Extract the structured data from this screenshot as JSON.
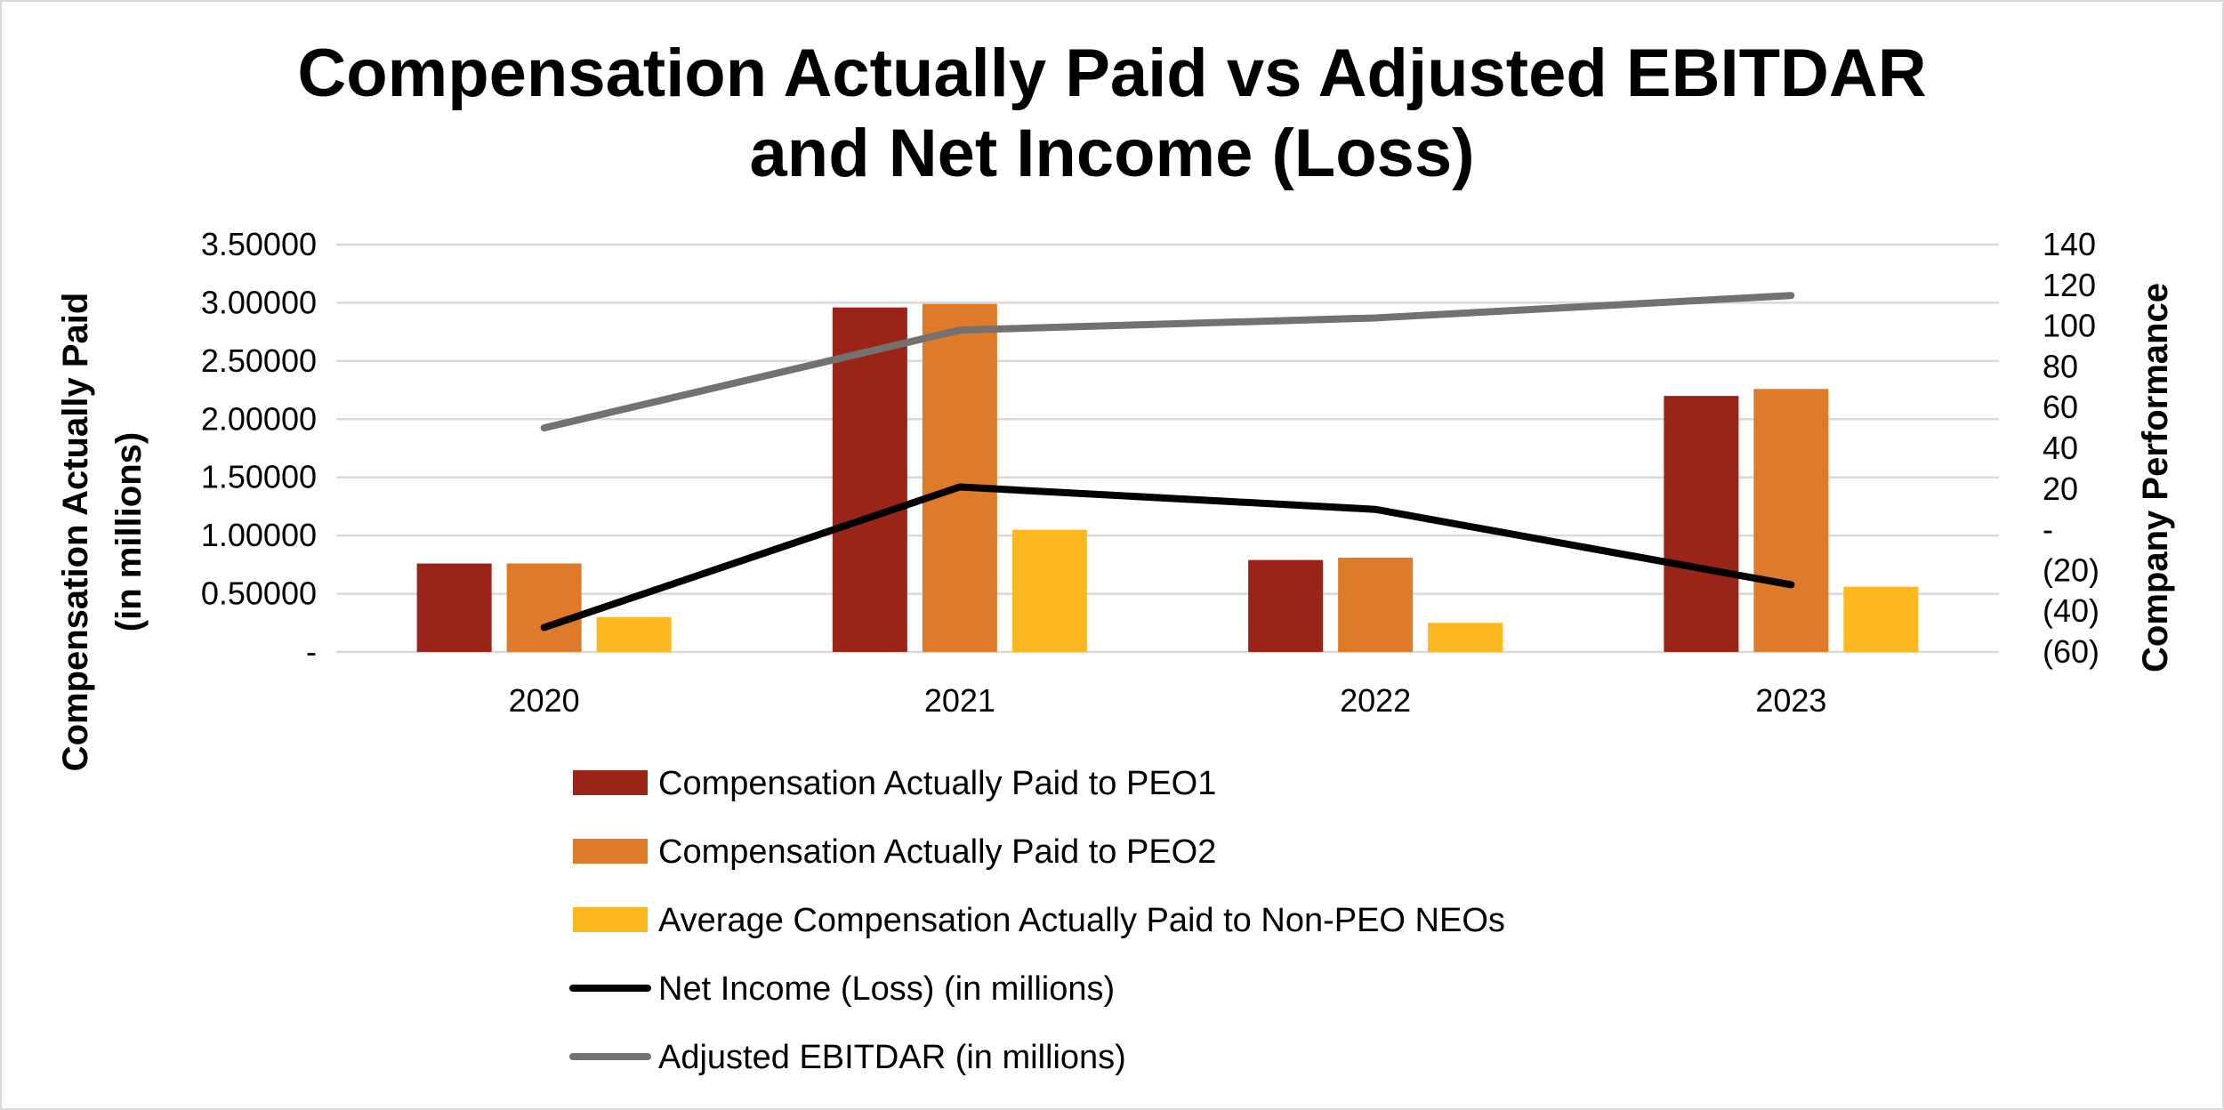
{
  "chart_data": {
    "type": "bar",
    "title_lines": [
      "Compensation Actually Paid vs Adjusted EBITDAR",
      "and Net Income (Loss)"
    ],
    "categories": [
      "2020",
      "2021",
      "2022",
      "2023"
    ],
    "y_left": {
      "label_lines": [
        "Compensation Actually Paid",
        "(in millions)"
      ],
      "ylim": [
        0,
        3.5
      ],
      "ticks": [
        0,
        0.5,
        1.0,
        1.5,
        2.0,
        2.5,
        3.0,
        3.5
      ],
      "tick_labels": [
        "-",
        "0.50000",
        "1.00000",
        "1.50000",
        "2.00000",
        "2.50000",
        "3.00000",
        "3.50000"
      ]
    },
    "y_right": {
      "label": "Company Performance",
      "ylim": [
        -60,
        140
      ],
      "ticks": [
        -60,
        -40,
        -20,
        0,
        20,
        40,
        60,
        80,
        100,
        120,
        140
      ],
      "tick_labels": [
        "(60)",
        "(40)",
        "(20)",
        "-",
        "20",
        "40",
        "60",
        "80",
        "100",
        "120",
        "140"
      ]
    },
    "grid": true,
    "series": [
      {
        "name": "Compensation Actually Paid to PEO1",
        "kind": "bar",
        "axis": "left",
        "color": "#9B2418",
        "values": [
          0.76,
          2.96,
          0.79,
          2.2
        ]
      },
      {
        "name": "Compensation Actually Paid to PEO2",
        "kind": "bar",
        "axis": "left",
        "color": "#DE7B2A",
        "values": [
          0.76,
          2.99,
          0.81,
          2.26
        ]
      },
      {
        "name": "Average Compensation Actually Paid to Non-PEO NEOs",
        "kind": "bar",
        "axis": "left",
        "color": "#FDB71F",
        "values": [
          0.3,
          1.05,
          0.25,
          0.56
        ]
      },
      {
        "name": "Net Income (Loss) (in millions)",
        "kind": "line",
        "axis": "right",
        "color": "#000000",
        "values": [
          -48,
          21,
          10,
          -27
        ]
      },
      {
        "name": "Adjusted EBITDAR (in millions)",
        "kind": "line",
        "axis": "right",
        "color": "#767171",
        "values": [
          50,
          98,
          104,
          115
        ]
      }
    ],
    "legend_position": "bottom"
  }
}
